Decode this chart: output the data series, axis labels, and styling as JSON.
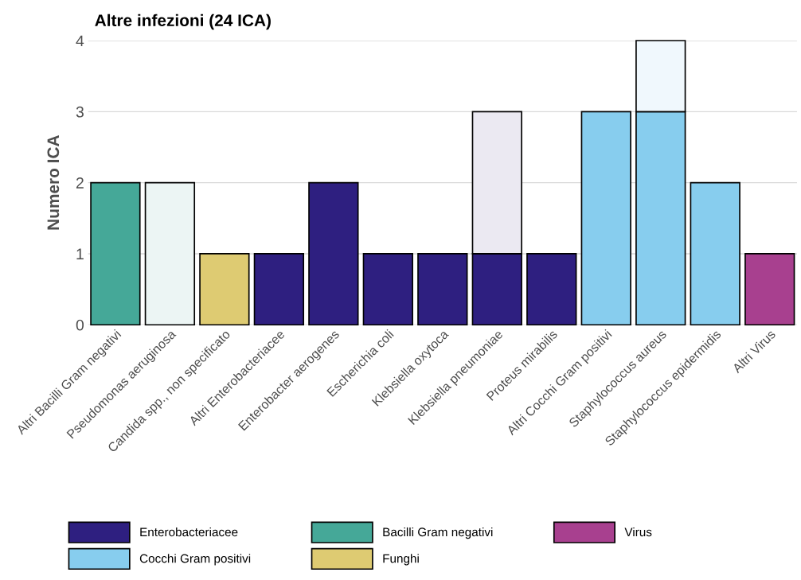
{
  "chart_data": {
    "type": "bar",
    "title": "Altre infezioni (24 ICA)",
    "ylabel": "Numero ICA",
    "categories": [
      "Altri Bacilli Gram negativi",
      "Pseudomonas aeruginosa",
      "Candida spp., non specificato",
      "Altri Enterobacteriacee",
      "Enterobacter aerogenes",
      "Escherichia coli",
      "Klebsiella oxytoca",
      "Klebsiella pneumoniae",
      "Proteus mirabilis",
      "Altri Cocchi Gram positivi",
      "Staphylococcus aureus",
      "Staphylococcus epidermidis",
      "Altri Virus"
    ],
    "stacked": true,
    "ylim": [
      0,
      4
    ],
    "yticks": [
      0,
      1,
      2,
      3,
      4
    ],
    "grid": "y",
    "legend": "bottom",
    "series": [
      {
        "name": "Enterobacteriacee",
        "color": "#2e1f80",
        "values": [
          null,
          null,
          null,
          1,
          2,
          1,
          1,
          1,
          1,
          null,
          null,
          null,
          null
        ]
      },
      {
        "name": "Cocchi Gram positivi",
        "color": "#87cdee",
        "values": [
          null,
          null,
          null,
          null,
          null,
          null,
          null,
          null,
          null,
          3,
          3,
          2,
          null
        ]
      },
      {
        "name": "Bacilli Gram negativi",
        "color": "#45a898",
        "values": [
          2,
          null,
          null,
          null,
          null,
          null,
          null,
          null,
          null,
          null,
          null,
          null,
          null
        ]
      },
      {
        "name": "Funghi",
        "color": "#decb72",
        "values": [
          null,
          null,
          1,
          null,
          null,
          null,
          null,
          null,
          null,
          null,
          null,
          null,
          null
        ]
      },
      {
        "name": "Virus",
        "color": "#a8408f",
        "values": [
          null,
          null,
          null,
          null,
          null,
          null,
          null,
          null,
          null,
          null,
          null,
          null,
          1
        ]
      },
      {
        "colors": [
          null,
          "#ecf5f4",
          null,
          null,
          null,
          null,
          null,
          "#ebe9f2",
          null,
          null,
          "#f0f8fd",
          null,
          null
        ],
        "values": [
          null,
          2,
          null,
          null,
          null,
          null,
          null,
          2,
          null,
          null,
          1,
          null,
          null
        ]
      }
    ]
  }
}
